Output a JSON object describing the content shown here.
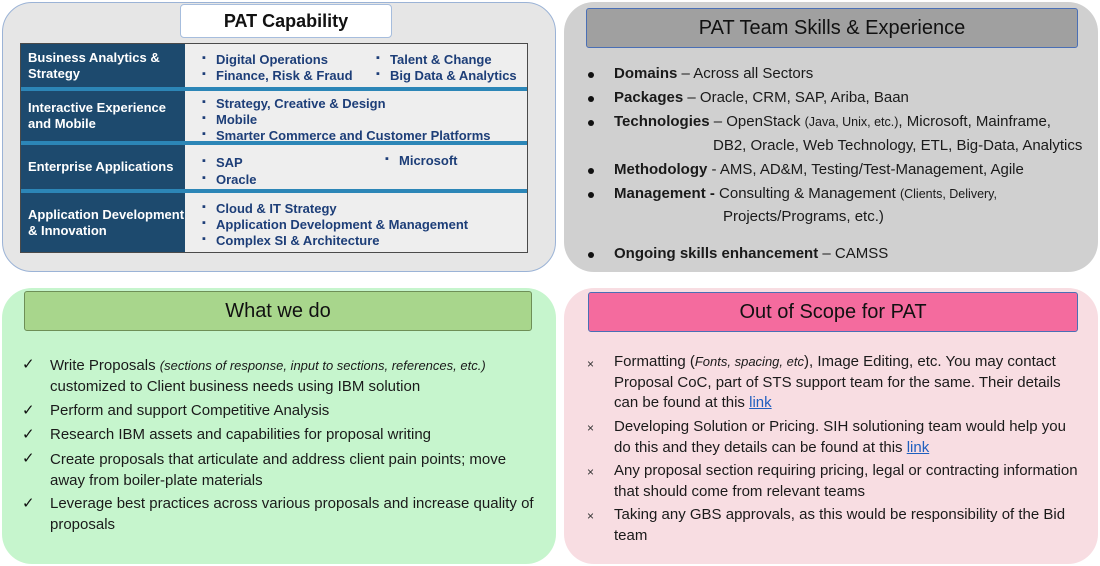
{
  "capability": {
    "title": "PAT Capability",
    "rows": [
      {
        "label": "Business Analytics & Strategy",
        "col1": [
          "Digital Operations",
          "Finance, Risk & Fraud"
        ],
        "col2": [
          "Talent & Change",
          "Big Data & Analytics"
        ]
      },
      {
        "label": "Interactive Experience and Mobile",
        "col1": [
          "Strategy, Creative & Design",
          "Mobile",
          "Smarter Commerce and Customer Platforms"
        ],
        "col2": []
      },
      {
        "label": "Enterprise Applications",
        "col1": [
          "SAP",
          "Oracle"
        ],
        "col2": [
          "Microsoft"
        ]
      },
      {
        "label": "Application Development & Innovation",
        "col1": [
          "Cloud & IT Strategy",
          "Application Development & Management",
          "Complex SI & Architecture"
        ],
        "col2": []
      }
    ]
  },
  "team": {
    "title": "PAT Team Skills & Experience",
    "items": [
      {
        "head": "Domains",
        "text": " – Across all Sectors"
      },
      {
        "head": "Packages",
        "text": " – Oracle, CRM, SAP, Ariba, Baan"
      },
      {
        "head": "Technologies",
        "text1": " – OpenStack ",
        "small1": "(Java, Unix, etc.)",
        "text2": ", Microsoft, Mainframe,",
        "line2": "DB2, Oracle, Web Technology, ETL, Big-Data, Analytics"
      },
      {
        "head": "Methodology",
        "text": " - AMS, AD&M, Testing/Test-Management, Agile"
      },
      {
        "head": "Management -",
        "text1": " Consulting & Management ",
        "small1": "(Clients, Delivery,",
        "line2": "Projects/Programs, etc.)"
      },
      {
        "head": "Ongoing skills enhancement",
        "text": " – CAMSS"
      }
    ]
  },
  "what": {
    "title": "What we do",
    "items": [
      {
        "text": "Write Proposals ",
        "italic": "(sections of response, input to sections, references, etc.)",
        "line2": "customized to Client business needs using IBM solution"
      },
      {
        "text": "Perform and support Competitive Analysis"
      },
      {
        "text": "Research IBM assets and capabilities for proposal writing"
      },
      {
        "text": "Create proposals that articulate and address client pain points; move away from boiler-plate materials"
      },
      {
        "text": "Leverage best practices across various proposals and increase quality of proposals"
      }
    ]
  },
  "scope": {
    "title": "Out of Scope for PAT",
    "items": [
      {
        "pre": "Formatting (",
        "italic": "Fonts, spacing, etc",
        "post": "), Image Editing, etc. You may contact Proposal CoC, part of STS support team for the same. Their details can be found at this ",
        "link": "link"
      },
      {
        "pre": "Developing Solution or Pricing. SIH solutioning team would help you do this and they details can be found at this ",
        "link": "link"
      },
      {
        "pre": "Any proposal section requiring pricing, legal or contracting information that should come from relevant teams"
      },
      {
        "pre": "Taking any GBS approvals, as this would be responsibility of the Bid team"
      }
    ]
  }
}
